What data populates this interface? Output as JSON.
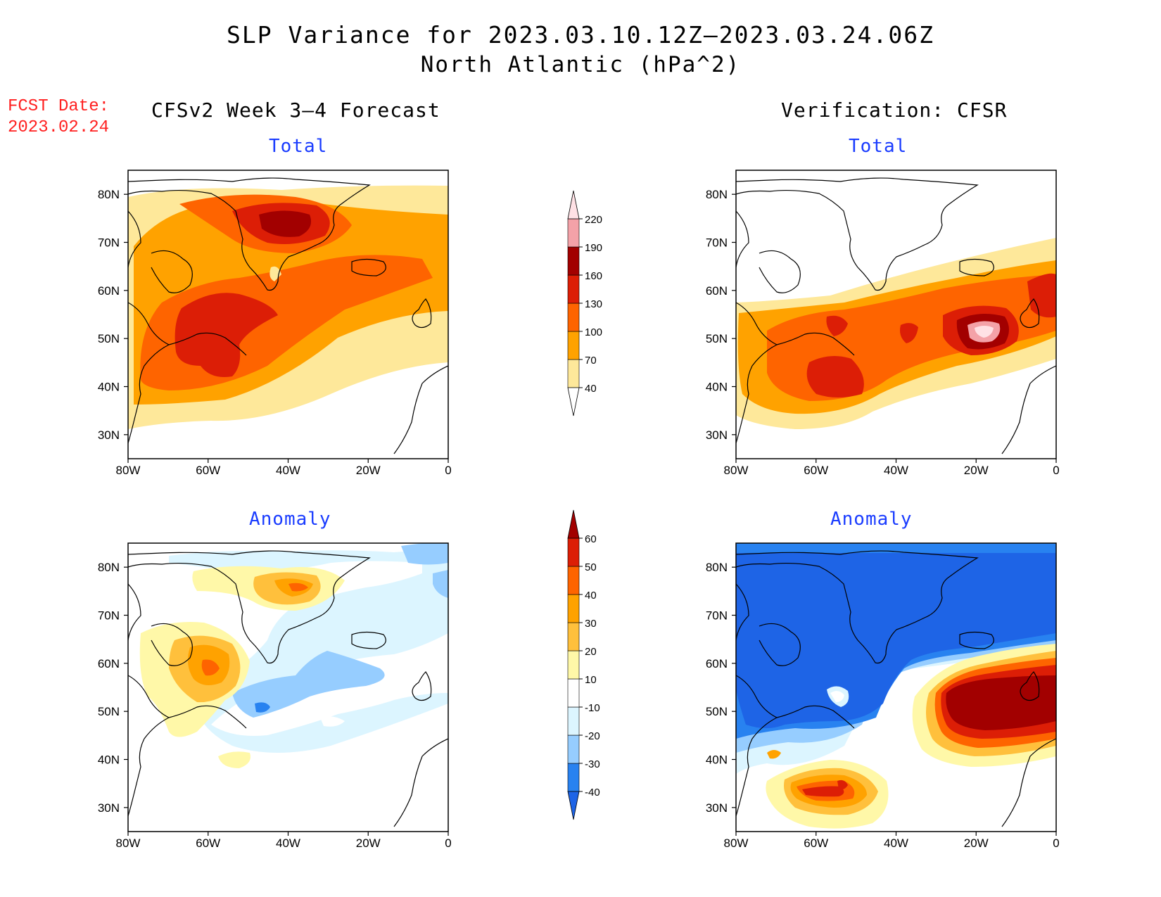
{
  "title": {
    "line1": "SLP Variance for 2023.03.10.12Z–2023.03.24.06Z",
    "line2": "North Atlantic (hPa^2)"
  },
  "fcst_date": {
    "label": "FCST Date:",
    "value": "2023.02.24"
  },
  "left_header": "CFSv2 Week 3–4 Forecast",
  "right_header": "Verification: CFSR",
  "panels": {
    "fc_total": {
      "subtitle": "Total"
    },
    "obs_total": {
      "subtitle": "Total"
    },
    "fc_anom": {
      "subtitle": "Anomaly"
    },
    "obs_anom": {
      "subtitle": "Anomaly"
    }
  },
  "axes": {
    "lat_labels": [
      "80N",
      "70N",
      "60N",
      "50N",
      "40N",
      "30N"
    ],
    "lon_labels": [
      "80W",
      "60W",
      "40W",
      "20W",
      "0"
    ]
  },
  "colorbars": {
    "total": {
      "levels": [
        "40",
        "70",
        "100",
        "130",
        "160",
        "190",
        "220"
      ],
      "colors": [
        "#ffffff",
        "#fee89a",
        "#ffa200",
        "#fe6400",
        "#dc1e06",
        "#a20000",
        "#f4a2a8",
        "#ffe1e5"
      ]
    },
    "anomaly": {
      "levels": [
        "-40",
        "-30",
        "-20",
        "-10",
        "10",
        "20",
        "30",
        "40",
        "50",
        "60"
      ],
      "colors": [
        "#1e64e6",
        "#2882f0",
        "#96cdff",
        "#dcf5ff",
        "#ffffff",
        "#fff8a8",
        "#ffc03c",
        "#ffa200",
        "#fe6400",
        "#dc1e06",
        "#a20000"
      ]
    }
  }
}
